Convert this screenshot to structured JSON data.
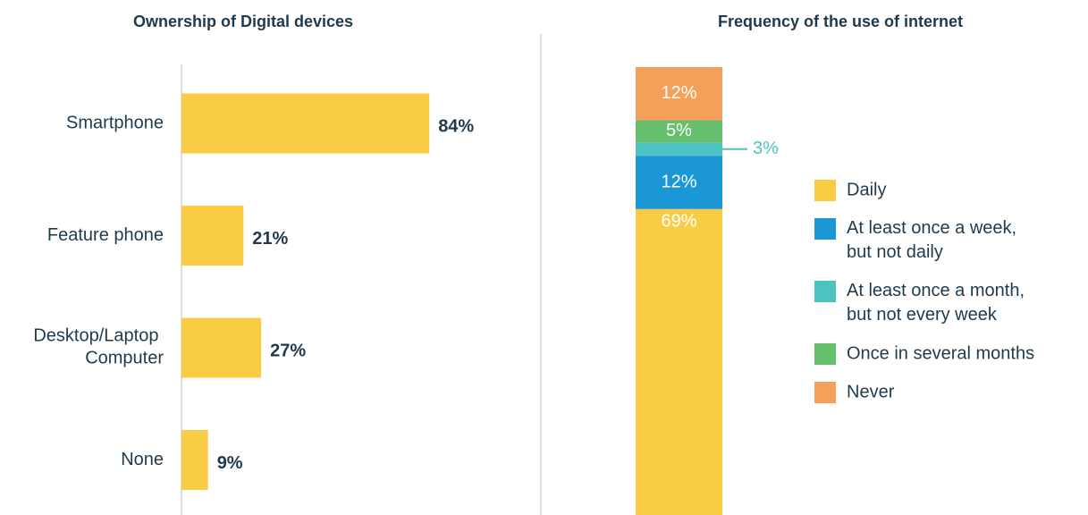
{
  "chart_data": [
    {
      "type": "bar",
      "orientation": "horizontal",
      "title": "Ownership of Digital devices",
      "categories": [
        "Smartphone",
        "Feature phone",
        "Desktop/Laptop Computer",
        "None"
      ],
      "values": [
        84,
        21,
        27,
        9
      ],
      "value_labels": [
        "84%",
        "21%",
        "27%",
        "9%"
      ],
      "color": "#f9cc45",
      "xlim": [
        0,
        100
      ]
    },
    {
      "type": "stacked_bar",
      "title": "Frequency of the use of internet",
      "ylim": [
        0,
        100
      ],
      "legend": "right",
      "series": [
        {
          "name": "Daily",
          "color": "#f9cc45",
          "values": [
            69
          ],
          "value_labels": [
            "69%"
          ]
        },
        {
          "name": "At least once a week, but not daily",
          "color": "#1b97d5",
          "values": [
            12
          ],
          "value_labels": [
            "12%"
          ]
        },
        {
          "name": "At least once a month, but not every week",
          "color": "#4cc3c3",
          "values": [
            3
          ],
          "value_labels": [
            "3%"
          ]
        },
        {
          "name": "Once in several months",
          "color": "#66bf6c",
          "values": [
            5
          ],
          "value_labels": [
            "5%"
          ]
        },
        {
          "name": "Never",
          "color": "#f5a05a",
          "values": [
            12
          ],
          "value_labels": [
            "12%"
          ]
        }
      ]
    }
  ]
}
